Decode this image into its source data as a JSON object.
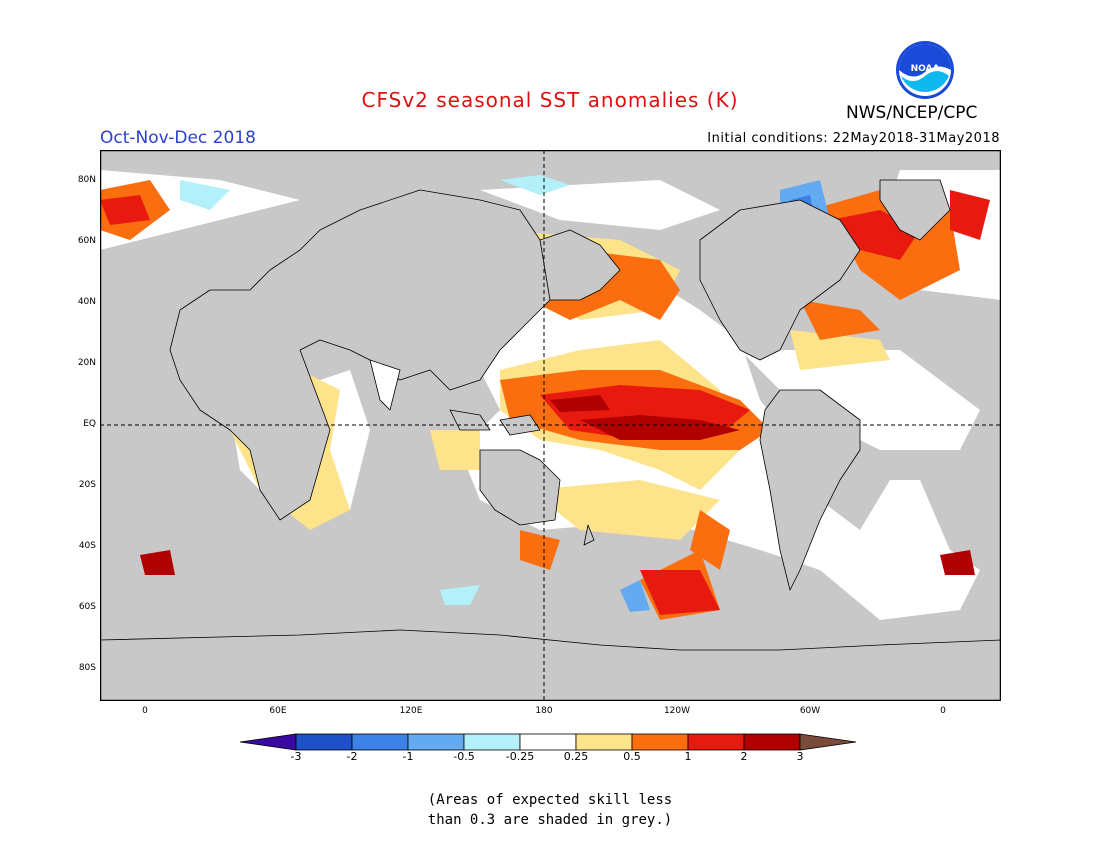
{
  "title": "CFSv2 seasonal SST anomalies (K)",
  "season": "Oct-Nov-Dec 2018",
  "initial_conditions": "Initial conditions: 22May2018-31May2018",
  "agency": "NWS/NCEP/CPC",
  "logo_text": "NOAA",
  "map": {
    "y_labels": [
      "80N",
      "60N",
      "40N",
      "20N",
      "EQ",
      "20S",
      "40S",
      "60S",
      "80S"
    ],
    "x_labels": [
      "0",
      "60E",
      "120E",
      "180",
      "120W",
      "60W",
      "0"
    ],
    "colors": {
      "land": "#ffffff",
      "no_skill": "#c8c8c8",
      "neutral": "#ffffff",
      "warm_025": "#fde38a",
      "warm_05": "#fb6e10",
      "warm_1": "#e81a10",
      "warm_2": "#b00000",
      "cool_025": "#b4f0fa",
      "cool_05": "#64aaf0",
      "cool_1": "#3c82e6",
      "cool_2": "#1e50c8"
    }
  },
  "colorbar": {
    "labels": [
      "-3",
      "-2",
      "-1",
      "-0.5",
      "-0.25",
      "0.25",
      "0.5",
      "1",
      "2",
      "3"
    ],
    "colors": [
      "#3a0aa0",
      "#1e50c8",
      "#3c82e6",
      "#64aaf0",
      "#b4f0fa",
      "#ffffff",
      "#fde38a",
      "#fb6e10",
      "#e81a10",
      "#b00000",
      "#7a4a3a"
    ]
  },
  "note": {
    "line1": "(Areas of expected skill less",
    "line2": "than 0.3 are shaded in grey.)"
  }
}
